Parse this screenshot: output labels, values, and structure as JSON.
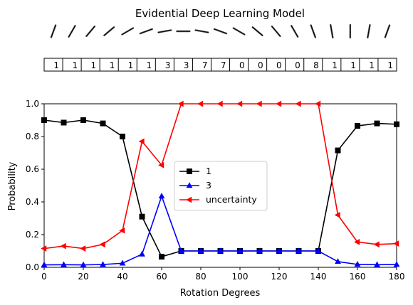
{
  "chart_data": {
    "type": "line",
    "title": "Evidential Deep Learning Model",
    "xlabel": "Rotation Degrees",
    "ylabel": "Probability",
    "xlim": [
      0,
      180
    ],
    "ylim": [
      0,
      1
    ],
    "x": [
      0,
      10,
      20,
      30,
      40,
      50,
      60,
      70,
      80,
      90,
      100,
      110,
      120,
      130,
      140,
      150,
      160,
      170,
      180
    ],
    "xticks": [
      "0",
      "20",
      "40",
      "60",
      "80",
      "100",
      "120",
      "140",
      "160",
      "180"
    ],
    "yticks": [
      "0.0",
      "0.2",
      "0.4",
      "0.6",
      "0.8",
      "1.0"
    ],
    "grid": false,
    "legend_position": "center",
    "predicted_labels": [
      "1",
      "1",
      "1",
      "1",
      "1",
      "1",
      "3",
      "3",
      "7",
      "7",
      "0",
      "0",
      "0",
      "0",
      "8",
      "1",
      "1",
      "1",
      "1"
    ],
    "digit_angles_deg": [
      0,
      10,
      20,
      30,
      40,
      50,
      60,
      70,
      80,
      90,
      100,
      110,
      120,
      130,
      140,
      150,
      160,
      170,
      180
    ],
    "series": [
      {
        "name": "1",
        "color": "#000000",
        "marker": "square",
        "values": [
          0.9,
          0.885,
          0.9,
          0.88,
          0.8,
          0.31,
          0.065,
          0.1,
          0.1,
          0.1,
          0.1,
          0.1,
          0.1,
          0.1,
          0.1,
          0.715,
          0.865,
          0.88,
          0.875
        ]
      },
      {
        "name": "3",
        "color": "#0000ff",
        "marker": "triangle-up",
        "values": [
          0.015,
          0.016,
          0.015,
          0.017,
          0.025,
          0.08,
          0.435,
          0.1,
          0.1,
          0.1,
          0.1,
          0.1,
          0.1,
          0.1,
          0.1,
          0.035,
          0.018,
          0.016,
          0.017
        ]
      },
      {
        "name": "uncertainty",
        "color": "#ff0000",
        "marker": "triangle-left",
        "values": [
          0.115,
          0.13,
          0.115,
          0.14,
          0.225,
          0.77,
          0.625,
          1.0,
          1.0,
          1.0,
          1.0,
          1.0,
          1.0,
          1.0,
          1.0,
          0.32,
          0.155,
          0.14,
          0.145
        ]
      }
    ]
  }
}
